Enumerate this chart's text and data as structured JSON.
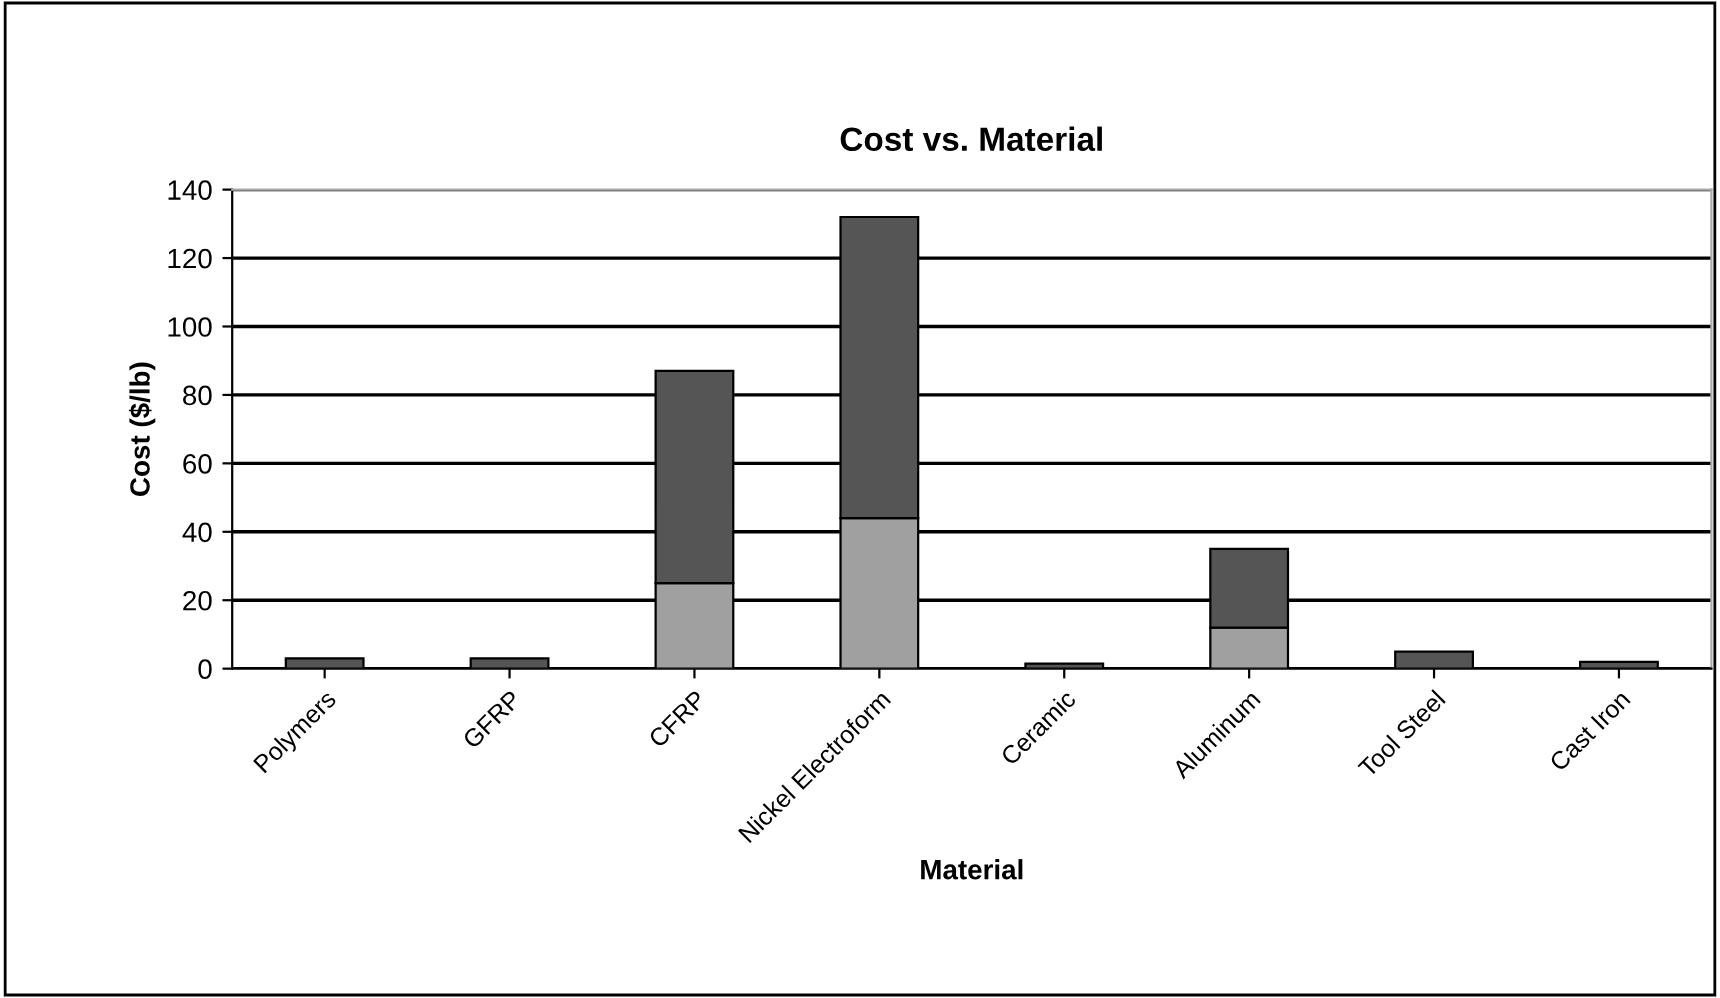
{
  "chart_data": {
    "type": "bar",
    "title": "Cost vs. Material",
    "xlabel": "Material",
    "ylabel": "Cost ($/lb)",
    "categories": [
      "Polymers",
      "GFRP",
      "CFRP",
      "Nickel Electroform",
      "Ceramic",
      "Aluminum",
      "Tool Steel",
      "Cast Iron"
    ],
    "stacked": true,
    "series": [
      {
        "color": "#a0a0a0",
        "values": [
          0,
          0,
          25,
          44,
          0,
          12,
          0,
          0
        ]
      },
      {
        "color": "#555555",
        "values": [
          3,
          3,
          62,
          88,
          1.5,
          23,
          5,
          2
        ]
      }
    ],
    "ylim": [
      0,
      140
    ],
    "yticks": [
      0,
      20,
      40,
      60,
      80,
      100,
      120,
      140
    ],
    "grid": "y",
    "legend": false
  }
}
